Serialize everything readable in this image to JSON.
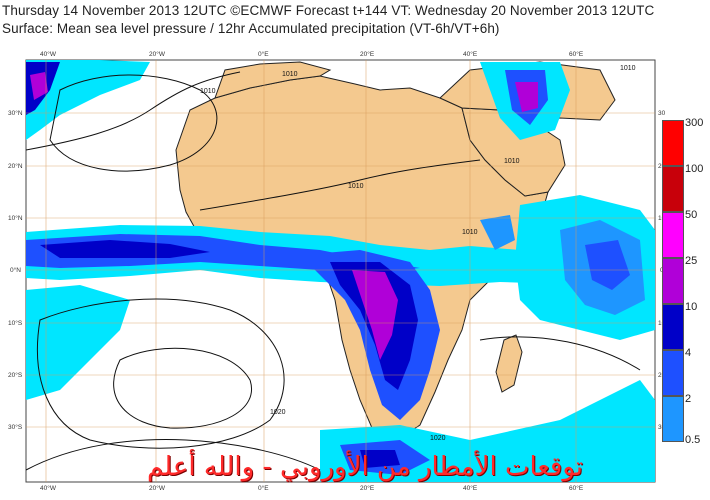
{
  "title_line1": "Thursday 14 November 2013 12UTC ©ECMWF Forecast t+144 VT: Wednesday 20 November 2013 12UTC",
  "title_line2": "Surface: Mean sea level pressure / 12hr Accumulated precipitation (VT-6h/VT+6h)",
  "lon_labels_top": [
    "40°W",
    "20°W",
    "0°E",
    "20°E",
    "40°E",
    "60°E"
  ],
  "lon_labels_bottom": [
    "40°W",
    "20°W",
    "0°E",
    "20°E",
    "40°E",
    "60°E"
  ],
  "lat_labels_left": [
    "30°N",
    "20°N",
    "10°N",
    "0°N",
    "10°S",
    "20°S",
    "30°S"
  ],
  "lat_labels_right": [
    "30",
    "20",
    "10",
    "0",
    "10",
    "20",
    "30"
  ],
  "colorbar": {
    "labels": [
      "300",
      "100",
      "50",
      "25",
      "10",
      "4",
      "2",
      "0.5"
    ],
    "colors": [
      "#ff0000",
      "#c8000a",
      "#ff00ff",
      "#b000d8",
      "#0000c8",
      "#1e50ff",
      "#1e96ff",
      "#00e6ff"
    ]
  },
  "isobar_labels": [
    "1010",
    "1010",
    "1010",
    "1010",
    "1010",
    "1020",
    "1020",
    "1010"
  ],
  "watermark_text": "توقعات الأمطار من الأوروبي - والله أعلم",
  "colors": {
    "land": "#f4c98f",
    "sea": "#ffffff",
    "light_precip": "#00e6ff",
    "moderate_precip": "#1e96ff",
    "heavy_precip": "#1e50ff",
    "very_heavy_precip": "#0000c8",
    "extreme_precip": "#b000d8"
  }
}
